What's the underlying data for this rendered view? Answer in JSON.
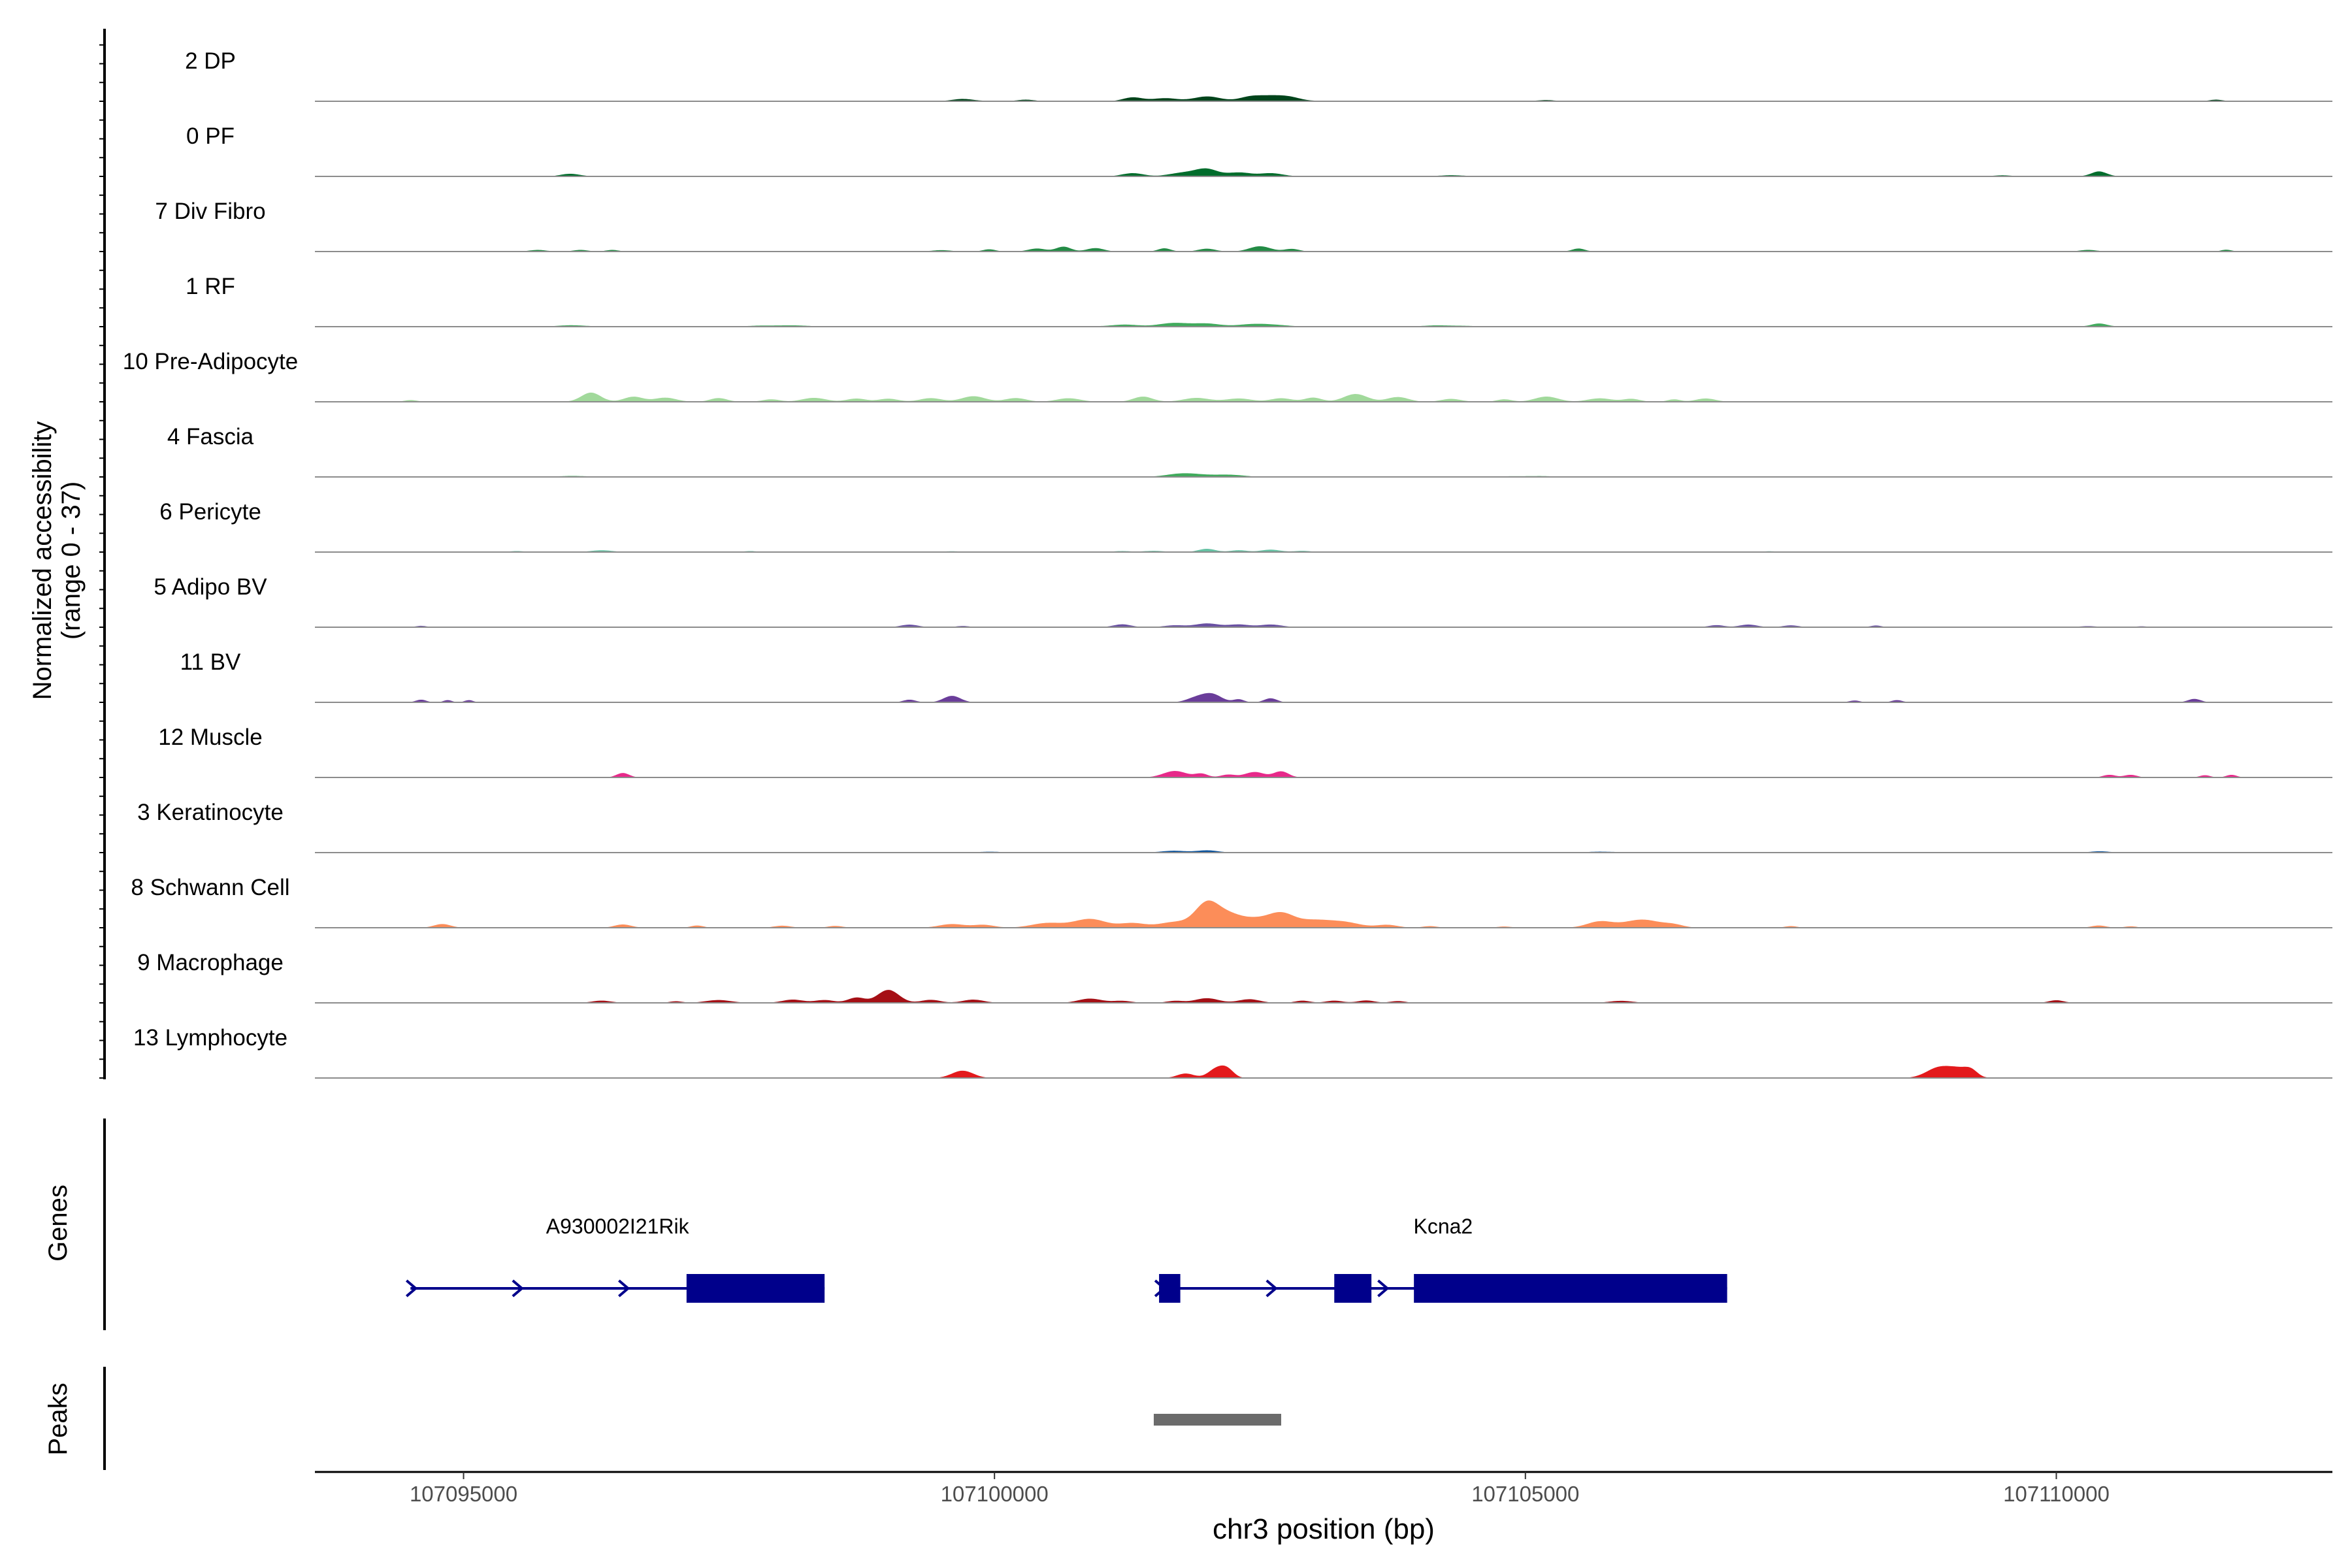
{
  "chart_data": {
    "type": "area",
    "title": "",
    "ylabel_line1": "Normalized accessibility",
    "ylabel_line2": "(range 0 - 37)",
    "y_range": [
      0,
      37
    ],
    "genes_label": "Genes",
    "peaks_label": "Peaks",
    "xlabel": "chr3 position (bp)",
    "xlim": [
      107093600,
      107112600
    ],
    "x_ticks": [
      107095000,
      107100000,
      107105000,
      107110000
    ],
    "x_tick_labels": [
      "107095000",
      "107100000",
      "107105000",
      "107110000"
    ],
    "baseline_color": "#8c8c8c",
    "tracks": [
      {
        "name": "2 DP",
        "color": "#00441b",
        "baseline": 0.6,
        "peaks": [
          [
            107101300,
            1.7,
            90
          ],
          [
            107101600,
            1.4,
            120
          ],
          [
            107102000,
            2.2,
            130
          ],
          [
            107102400,
            1.5,
            100
          ],
          [
            107102600,
            2.6,
            140
          ],
          [
            107102800,
            1.2,
            100
          ],
          [
            107099700,
            1.1,
            90
          ],
          [
            107100300,
            0.7,
            80
          ],
          [
            107111500,
            0.7,
            60
          ],
          [
            107105200,
            0.4,
            80
          ]
        ]
      },
      {
        "name": "0 PF",
        "color": "#006d2c",
        "baseline": 0.6,
        "peaks": [
          [
            107096000,
            1.1,
            90
          ],
          [
            107101300,
            1.4,
            100
          ],
          [
            107101800,
            1.9,
            130
          ],
          [
            107102000,
            3.1,
            100
          ],
          [
            107102300,
            1.8,
            120
          ],
          [
            107102600,
            1.5,
            100
          ],
          [
            107110400,
            2.3,
            70
          ],
          [
            107109500,
            0.4,
            80
          ],
          [
            107104300,
            0.5,
            90
          ]
        ]
      },
      {
        "name": "7 Div Fibro",
        "color": "#238b45",
        "baseline": 0.0,
        "peaks": [
          [
            107095700,
            0.8,
            80
          ],
          [
            107096100,
            0.8,
            70
          ],
          [
            107096400,
            0.8,
            60
          ],
          [
            107099500,
            0.7,
            90
          ],
          [
            107099950,
            1.1,
            60
          ],
          [
            107100400,
            1.5,
            80
          ],
          [
            107100650,
            2.4,
            70
          ],
          [
            107100950,
            1.7,
            80
          ],
          [
            107101600,
            1.6,
            60
          ],
          [
            107102000,
            1.4,
            80
          ],
          [
            107102500,
            2.6,
            100
          ],
          [
            107102800,
            1.3,
            70
          ],
          [
            107105500,
            1.5,
            60
          ],
          [
            107110300,
            0.8,
            80
          ],
          [
            107111600,
            0.9,
            50
          ]
        ]
      },
      {
        "name": "1 RF",
        "color": "#41ab5d",
        "baseline": 0.7,
        "peaks": [
          [
            107101200,
            0.9,
            120
          ],
          [
            107101700,
            1.7,
            150
          ],
          [
            107102000,
            1.2,
            130
          ],
          [
            107102500,
            1.4,
            160
          ],
          [
            107110400,
            1.4,
            70
          ],
          [
            107096000,
            0.5,
            150
          ],
          [
            107098000,
            0.6,
            200
          ],
          [
            107104200,
            0.5,
            180
          ]
        ]
      },
      {
        "name": "10 Pre-Adipocyte",
        "color": "#a1d99b",
        "baseline": 0.2,
        "peaks": [
          [
            107094500,
            0.8,
            60
          ],
          [
            107096200,
            4.5,
            90
          ],
          [
            107096600,
            2.5,
            90
          ],
          [
            107096900,
            2.0,
            100
          ],
          [
            107097400,
            1.8,
            80
          ],
          [
            107097900,
            1.2,
            80
          ],
          [
            107098300,
            1.9,
            110
          ],
          [
            107098700,
            1.6,
            90
          ],
          [
            107099000,
            1.5,
            90
          ],
          [
            107099400,
            1.8,
            100
          ],
          [
            107099800,
            2.7,
            110
          ],
          [
            107100200,
            1.8,
            100
          ],
          [
            107100700,
            1.7,
            110
          ],
          [
            107101400,
            2.5,
            90
          ],
          [
            107101900,
            1.9,
            120
          ],
          [
            107102300,
            1.6,
            120
          ],
          [
            107102700,
            1.7,
            100
          ],
          [
            107103000,
            2.0,
            80
          ],
          [
            107103400,
            3.8,
            110
          ],
          [
            107103800,
            2.3,
            100
          ],
          [
            107104300,
            1.4,
            90
          ],
          [
            107104800,
            1.2,
            70
          ],
          [
            107105200,
            2.5,
            110
          ],
          [
            107105700,
            1.7,
            110
          ],
          [
            107106000,
            1.4,
            80
          ],
          [
            107106700,
            1.6,
            90
          ],
          [
            107106400,
            1.2,
            60
          ]
        ]
      },
      {
        "name": "4 Fascia",
        "color": "#41ab5d",
        "baseline": 0.6,
        "peaks": [
          [
            107101800,
            1.8,
            150
          ],
          [
            107102200,
            1.0,
            130
          ],
          [
            107096000,
            0.3,
            200
          ],
          [
            107105000,
            0.3,
            200
          ]
        ]
      },
      {
        "name": "6 Pericyte",
        "color": "#66c2a4",
        "baseline": 0.0,
        "peaks": [
          [
            107096300,
            0.9,
            100
          ],
          [
            107099600,
            0.4,
            80
          ],
          [
            107101200,
            0.5,
            80
          ],
          [
            107101500,
            0.6,
            100
          ],
          [
            107102000,
            1.6,
            80
          ],
          [
            107102300,
            0.9,
            80
          ],
          [
            107102600,
            1.2,
            90
          ],
          [
            107102900,
            0.6,
            80
          ],
          [
            107097700,
            0.5,
            60
          ],
          [
            107107300,
            0.4,
            60
          ],
          [
            107095500,
            0.5,
            70
          ]
        ]
      },
      {
        "name": "5 Adipo BV",
        "color": "#6a51a3",
        "baseline": 0.2,
        "peaks": [
          [
            107094600,
            0.6,
            50
          ],
          [
            107099200,
            1.2,
            80
          ],
          [
            107099700,
            0.6,
            60
          ],
          [
            107101200,
            1.4,
            80
          ],
          [
            107101700,
            0.9,
            100
          ],
          [
            107102000,
            1.8,
            110
          ],
          [
            107102300,
            1.3,
            100
          ],
          [
            107102600,
            1.3,
            100
          ],
          [
            107106800,
            1.0,
            70
          ],
          [
            107107100,
            1.3,
            80
          ],
          [
            107107500,
            0.9,
            70
          ],
          [
            107108300,
            0.8,
            50
          ],
          [
            107110300,
            0.5,
            80
          ],
          [
            107110800,
            0.4,
            60
          ]
        ]
      },
      {
        "name": "11 BV",
        "color": "#6a3d9a",
        "baseline": 0.0,
        "peaks": [
          [
            107094600,
            1.3,
            50
          ],
          [
            107094850,
            1.1,
            40
          ],
          [
            107095050,
            1.1,
            40
          ],
          [
            107099200,
            1.3,
            60
          ],
          [
            107099600,
            3.2,
            80
          ],
          [
            107101900,
            2.2,
            90
          ],
          [
            107102050,
            3.9,
            90
          ],
          [
            107102300,
            1.5,
            50
          ],
          [
            107102600,
            2.0,
            60
          ],
          [
            107108100,
            0.9,
            50
          ],
          [
            107108500,
            1.1,
            50
          ],
          [
            107111300,
            1.7,
            60
          ]
        ]
      },
      {
        "name": "12 Muscle",
        "color": "#e7298a",
        "baseline": 0.0,
        "peaks": [
          [
            107096500,
            2.2,
            60
          ],
          [
            107101700,
            3.2,
            110
          ],
          [
            107101950,
            1.8,
            60
          ],
          [
            107102200,
            1.4,
            70
          ],
          [
            107102450,
            2.7,
            90
          ],
          [
            107102700,
            3.0,
            70
          ],
          [
            107110500,
            1.3,
            60
          ],
          [
            107110700,
            1.3,
            60
          ],
          [
            107111400,
            1.1,
            50
          ],
          [
            107111650,
            1.3,
            50
          ]
        ]
      },
      {
        "name": "3 Keratinocyte",
        "color": "#08519c",
        "baseline": 0.6,
        "peaks": [
          [
            107101700,
            0.8,
            120
          ],
          [
            107102000,
            0.9,
            100
          ],
          [
            107105700,
            0.4,
            100
          ],
          [
            107100000,
            0.3,
            100
          ],
          [
            107110400,
            0.5,
            80
          ]
        ]
      },
      {
        "name": "8 Schwann Cell",
        "color": "#fc8d59",
        "baseline": 0.0,
        "peaks": [
          [
            107094800,
            1.8,
            80
          ],
          [
            107096500,
            1.6,
            80
          ],
          [
            107097200,
            1.1,
            60
          ],
          [
            107098000,
            1.0,
            80
          ],
          [
            107099600,
            1.8,
            120
          ],
          [
            107099900,
            1.4,
            100
          ],
          [
            107100500,
            2.3,
            150
          ],
          [
            107100900,
            4.3,
            150
          ],
          [
            107101300,
            2.2,
            120
          ],
          [
            107101700,
            2.8,
            150
          ],
          [
            107102000,
            11.5,
            110
          ],
          [
            107102200,
            5.5,
            120
          ],
          [
            107102450,
            4.0,
            140
          ],
          [
            107102700,
            6.3,
            120
          ],
          [
            107103000,
            3.5,
            160
          ],
          [
            107103300,
            2.5,
            150
          ],
          [
            107103700,
            1.4,
            100
          ],
          [
            107104100,
            0.8,
            70
          ],
          [
            107105700,
            3.0,
            120
          ],
          [
            107106100,
            4.0,
            170
          ],
          [
            107106400,
            1.2,
            90
          ],
          [
            107107500,
            0.8,
            60
          ],
          [
            107110400,
            1.1,
            70
          ],
          [
            107110700,
            0.7,
            60
          ],
          [
            107098500,
            0.9,
            70
          ],
          [
            107104800,
            0.6,
            70
          ]
        ]
      },
      {
        "name": "9 Macrophage",
        "color": "#a50f15",
        "baseline": 0.0,
        "peaks": [
          [
            107096300,
            1.1,
            90
          ],
          [
            107097400,
            1.4,
            120
          ],
          [
            107098100,
            1.6,
            100
          ],
          [
            107098400,
            1.4,
            90
          ],
          [
            107098700,
            2.6,
            80
          ],
          [
            107099000,
            6.4,
            100
          ],
          [
            107099400,
            1.5,
            90
          ],
          [
            107099800,
            1.6,
            100
          ],
          [
            107100900,
            2.1,
            110
          ],
          [
            107101200,
            1.0,
            90
          ],
          [
            107101700,
            1.0,
            80
          ],
          [
            107102000,
            2.3,
            110
          ],
          [
            107102400,
            1.8,
            100
          ],
          [
            107102900,
            1.1,
            70
          ],
          [
            107103200,
            1.1,
            80
          ],
          [
            107103500,
            1.2,
            80
          ],
          [
            107103800,
            0.9,
            70
          ],
          [
            107105900,
            1.0,
            110
          ],
          [
            107110000,
            1.3,
            70
          ],
          [
            107097000,
            0.8,
            60
          ]
        ]
      },
      {
        "name": "13 Lymphocyte",
        "color": "#e31a1c",
        "baseline": 0.0,
        "peaks": [
          [
            107099700,
            3.6,
            100
          ],
          [
            107101800,
            2.2,
            80
          ],
          [
            107102100,
            4.9,
            80
          ],
          [
            107102200,
            3.0,
            60
          ],
          [
            107108900,
            5.2,
            120
          ],
          [
            107109100,
            3.6,
            100
          ],
          [
            107109200,
            2.5,
            60
          ]
        ]
      }
    ],
    "genes": [
      {
        "name": "A930002I21Rik",
        "start": 107094500,
        "end": 107098400,
        "exons": [
          [
            107097100,
            107098400
          ]
        ],
        "arrows": [
          107094500,
          107095500,
          107096500
        ]
      },
      {
        "name": "Kcna2",
        "start": 107101550,
        "end": 107106900,
        "exons": [
          [
            107101550,
            107101750
          ],
          [
            107103200,
            107103550
          ],
          [
            107103950,
            107106900
          ]
        ],
        "arrows": [
          107101550,
          107102600,
          107103650
        ]
      }
    ],
    "gene_color": "#00008b",
    "peak_regions": [
      [
        107101500,
        107102700
      ]
    ],
    "peak_color": "#6b6b6b"
  }
}
